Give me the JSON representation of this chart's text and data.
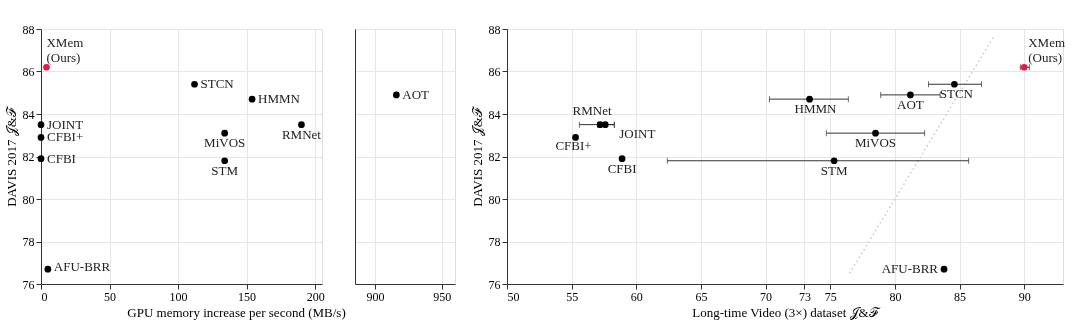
{
  "chart_data": [
    {
      "type": "scatter",
      "xlabel": "GPU memory increase per second (MB/s)",
      "ylabel": "DAVIS 2017 𝒥&ℱ",
      "xlim": [
        0,
        205
      ],
      "xticks": [
        0,
        50,
        100,
        150,
        200
      ],
      "ylim": [
        76,
        88
      ],
      "yticks": [
        76,
        78,
        80,
        82,
        84,
        86,
        88
      ],
      "grid": true,
      "legend": false,
      "marker": "circle",
      "series": [
        {
          "color": "#e8174a",
          "x": [
            4
          ],
          "values": [
            86.2
          ]
        },
        {
          "color": "#000000",
          "x": [
            112,
            154,
            190,
            134,
            134,
            0,
            0,
            0,
            5
          ],
          "values": [
            85.4,
            84.7,
            83.5,
            83.1,
            81.8,
            83.5,
            82.9,
            81.9,
            76.7
          ]
        }
      ],
      "annotations": [
        {
          "text": "XMem\n(Ours)",
          "x": 4,
          "y": 86.2
        },
        {
          "text": "STCN",
          "x": 112,
          "y": 85.4
        },
        {
          "text": "HMMN",
          "x": 154,
          "y": 84.7
        },
        {
          "text": "RMNet",
          "x": 190,
          "y": 83.5
        },
        {
          "text": "MiVOS",
          "x": 134,
          "y": 83.1
        },
        {
          "text": "STM",
          "x": 134,
          "y": 81.8
        },
        {
          "text": "JOINT",
          "x": 0,
          "y": 83.5
        },
        {
          "text": "CFBI+",
          "x": 0,
          "y": 82.9
        },
        {
          "text": "CFBI",
          "x": 0,
          "y": 81.9
        },
        {
          "text": "AFU-BRR",
          "x": 5,
          "y": 76.7
        }
      ]
    },
    {
      "type": "scatter",
      "tick_labels": "x",
      "xlim": [
        885,
        960
      ],
      "xticks": [
        900,
        950
      ],
      "ylim": [
        76,
        88
      ],
      "yticks": [
        76,
        78,
        80,
        82,
        84,
        86,
        88
      ],
      "grid": true,
      "legend": false,
      "marker": "circle",
      "series": [
        {
          "color": "#000000",
          "x": [
            916
          ],
          "values": [
            84.9
          ]
        }
      ],
      "annotations": [
        {
          "text": "AOT",
          "x": 916,
          "y": 84.9
        }
      ]
    },
    {
      "type": "scatter",
      "xlabel": "Long-time Video (3×) dataset 𝒥&ℱ",
      "ylabel": "DAVIS 2017 𝒥&ℱ",
      "xlim": [
        50,
        93
      ],
      "xticks": [
        50,
        55,
        60,
        65,
        70,
        73,
        75,
        80,
        85,
        90
      ],
      "ylim": [
        76,
        88
      ],
      "yticks": [
        76,
        78,
        80,
        82,
        84,
        86,
        88
      ],
      "grid": true,
      "legend": false,
      "marker": "circle",
      "series": [
        {
          "type": "line",
          "color": "#c8c8c8",
          "line_style": "dotted",
          "marker": "none",
          "x": [
            76.5,
            87.6
          ],
          "values": [
            76.5,
            87.6
          ]
        },
        {
          "color": "#e8174a",
          "x": [
            90.0
          ],
          "values": [
            86.2
          ],
          "xerrors": [
            [
              89.7,
              90.4
            ]
          ]
        },
        {
          "color": "#000000",
          "x": [
            57.2,
            57.6,
            55.3,
            58.9,
            75.3,
            73.4,
            78.5,
            81.2,
            84.6,
            83.8
          ],
          "values": [
            83.5,
            83.5,
            82.9,
            81.9,
            81.8,
            84.7,
            83.1,
            84.9,
            85.4,
            76.7
          ],
          "xerrors": [
            [
              55.6,
              58.3
            ],
            [
              57.0,
              58.3
            ],
            null,
            null,
            [
              62.4,
              85.7
            ],
            [
              70.3,
              76.4
            ],
            [
              74.7,
              82.3
            ],
            [
              78.9,
              83.5
            ],
            [
              82.6,
              86.7
            ],
            null
          ]
        }
      ],
      "annotations": [
        {
          "text": "XMem\n(Ours)",
          "x": 90.0,
          "y": 86.2
        },
        {
          "text": "RMNet",
          "x": 57.2,
          "y": 83.5
        },
        {
          "text": "JOINT",
          "x": 57.6,
          "y": 83.5
        },
        {
          "text": "CFBI+",
          "x": 55.3,
          "y": 82.9
        },
        {
          "text": "CFBI",
          "x": 58.9,
          "y": 81.9
        },
        {
          "text": "STM",
          "x": 75.3,
          "y": 81.8
        },
        {
          "text": "HMMN",
          "x": 73.4,
          "y": 84.7
        },
        {
          "text": "MiVOS",
          "x": 78.5,
          "y": 83.1
        },
        {
          "text": "AOT",
          "x": 81.2,
          "y": 84.9
        },
        {
          "text": "STCN",
          "x": 84.6,
          "y": 85.4
        },
        {
          "text": "AFU-BRR",
          "x": 83.8,
          "y": 76.7
        }
      ]
    }
  ]
}
